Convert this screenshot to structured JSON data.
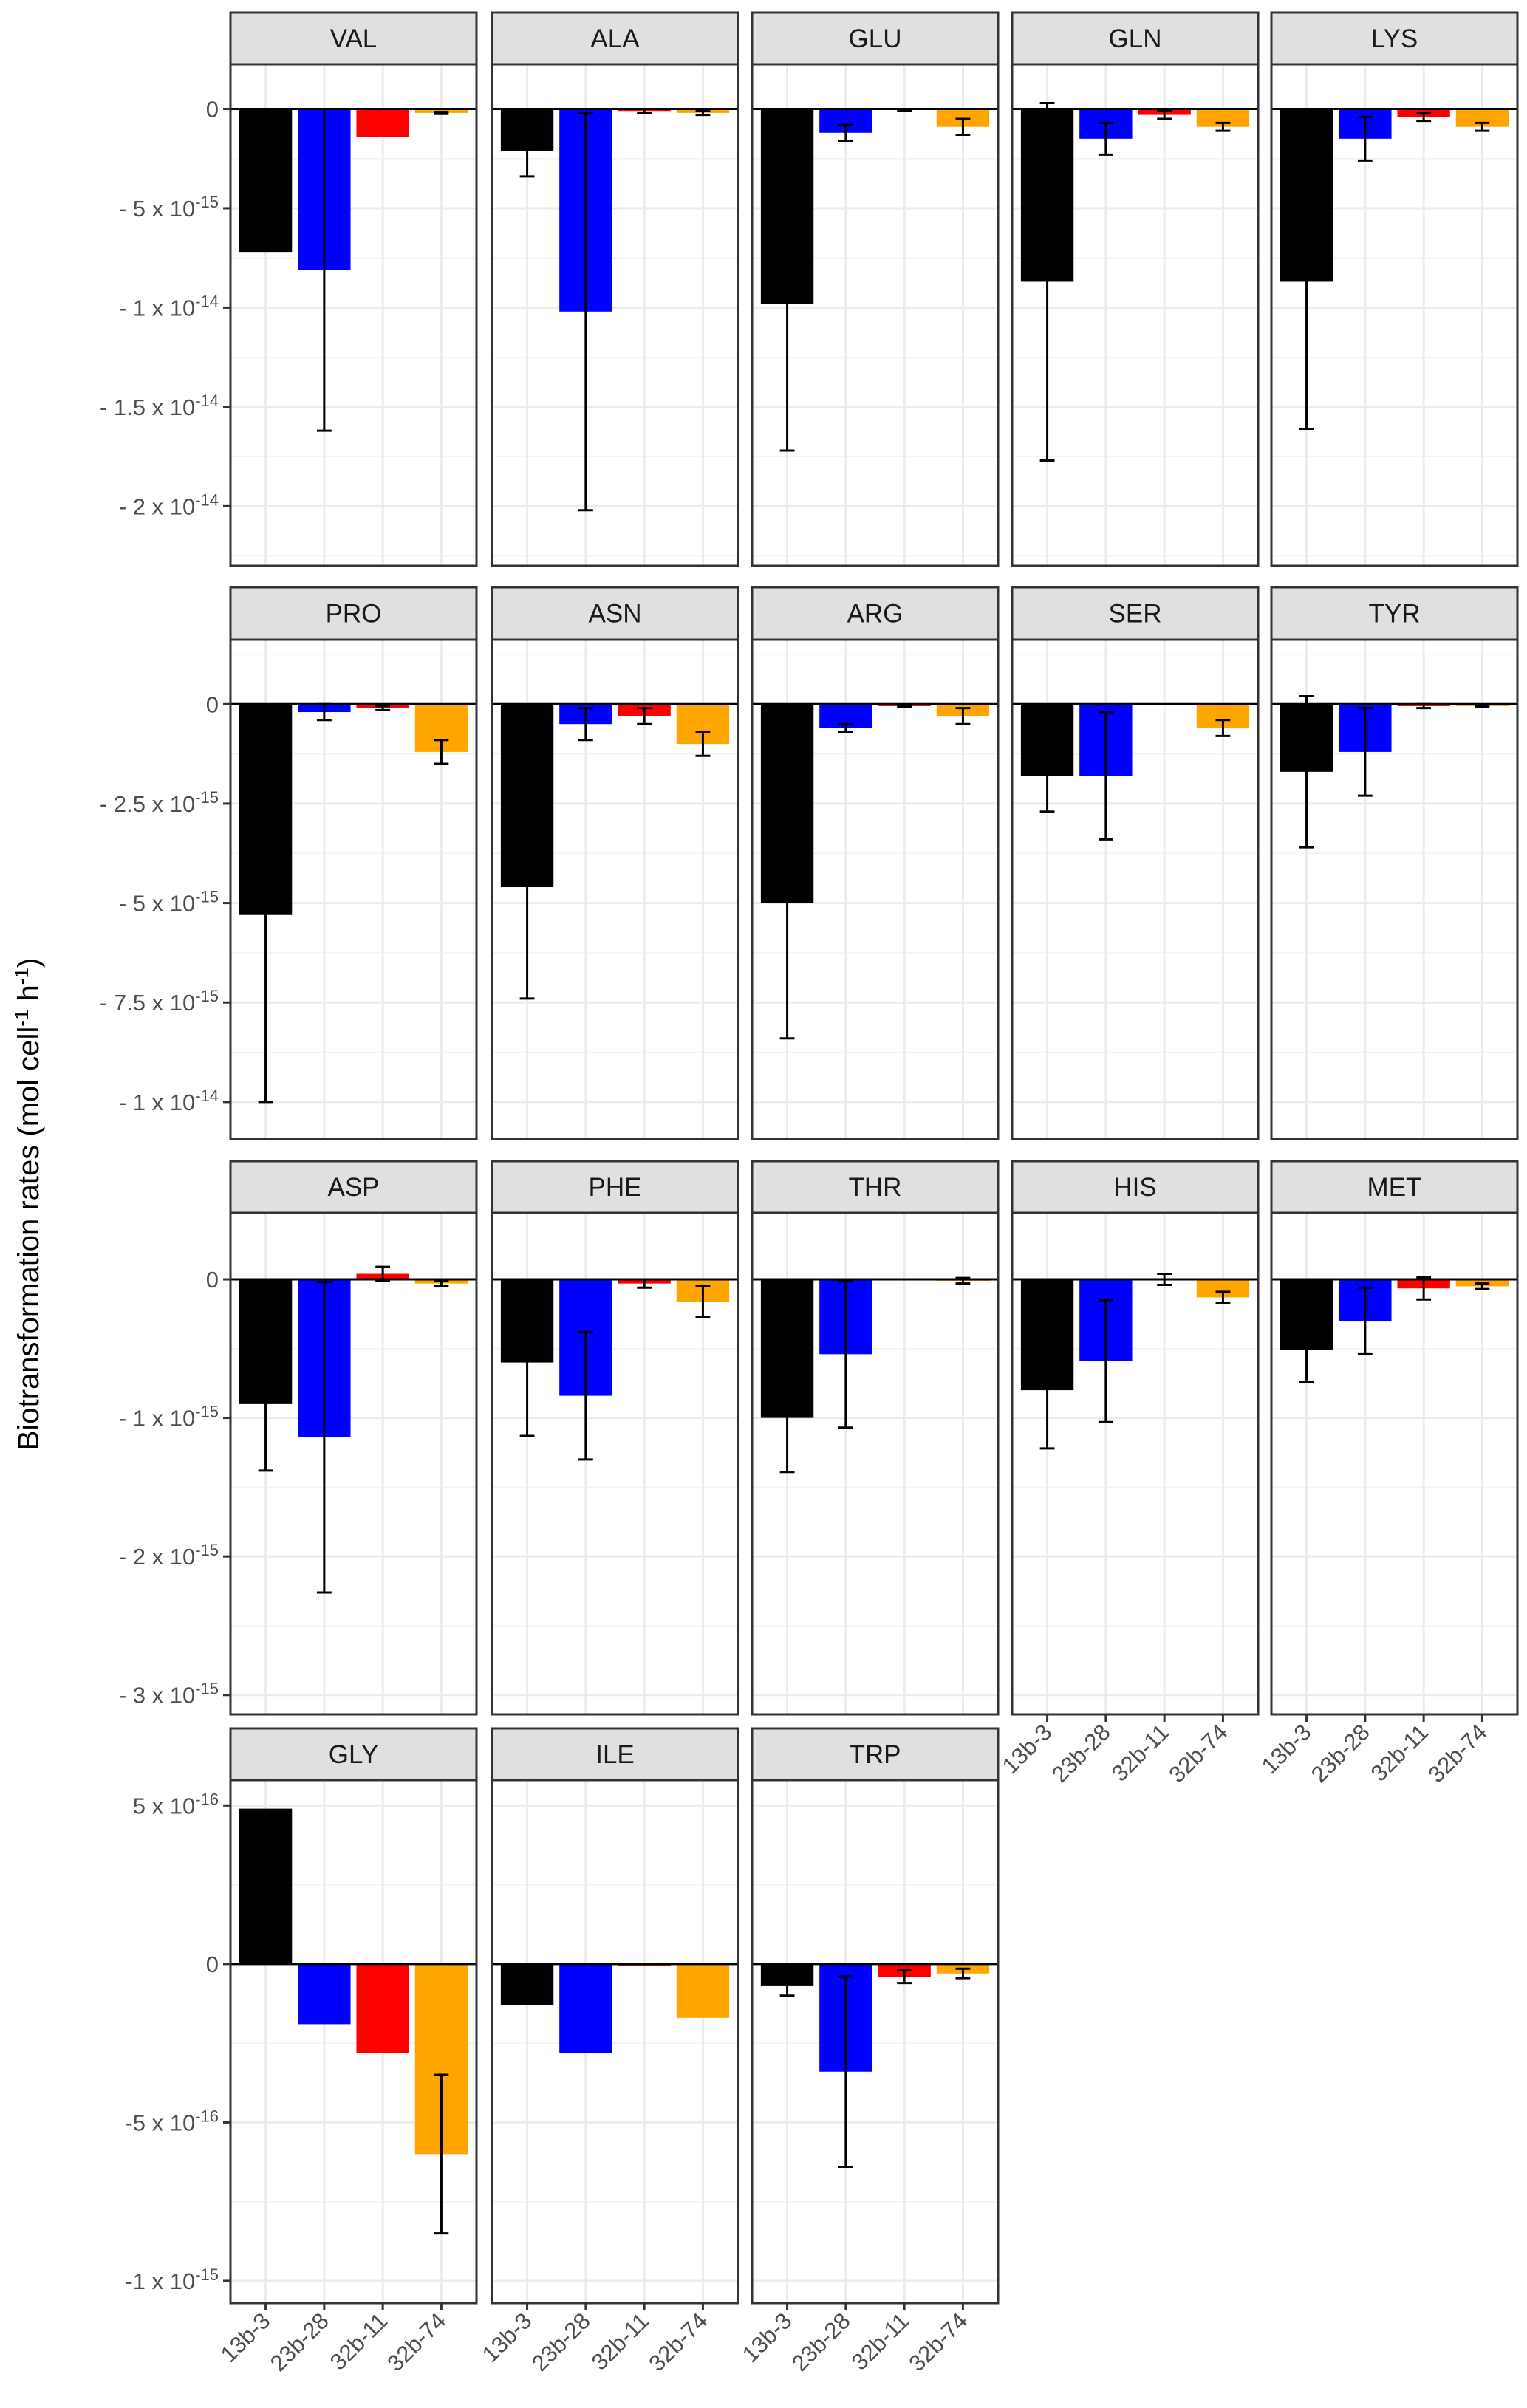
{
  "chart_data": {
    "type": "bar",
    "layout": "faceted-grid",
    "ylabel": {
      "text": "Biotransformation rates (mol cell",
      "sup1": "-1",
      "mid": " h",
      "sup2": "-1",
      "end": ")"
    },
    "categories": [
      "13b-3",
      "23b-28",
      "32b-11",
      "32b-74"
    ],
    "colors": [
      "#000000",
      "#0000ff",
      "#ff0000",
      "#ffa500"
    ],
    "rows": [
      {
        "ylim": [
          -2.3e-14,
          2.25e-15
        ],
        "ticks": [
          {
            "value": 0,
            "text": "0",
            "exp": ""
          },
          {
            "value": -5e-15,
            "text": "- 5 x 10",
            "exp": "-15"
          },
          {
            "value": -1e-14,
            "text": "- 1 x 10",
            "exp": "-14"
          },
          {
            "value": -1.5e-14,
            "text": "- 1.5 x 10",
            "exp": "-14"
          },
          {
            "value": -2e-14,
            "text": "- 2 x 10",
            "exp": "-14"
          }
        ]
      },
      {
        "ylim": [
          -1.093e-14,
          1.62e-15
        ],
        "ticks": [
          {
            "value": 0,
            "text": "0",
            "exp": ""
          },
          {
            "value": -2.5e-15,
            "text": "- 2.5 x 10",
            "exp": "-15"
          },
          {
            "value": -5e-15,
            "text": "- 5 x 10",
            "exp": "-15"
          },
          {
            "value": -7.5e-15,
            "text": "- 7.5 x 10",
            "exp": "-15"
          },
          {
            "value": -1e-14,
            "text": "- 1 x 10",
            "exp": "-14"
          }
        ]
      },
      {
        "ylim": [
          -3.14e-15,
          4.8e-16
        ],
        "ticks": [
          {
            "value": 0,
            "text": "0",
            "exp": ""
          },
          {
            "value": -1e-15,
            "text": "- 1 x 10",
            "exp": "-15"
          },
          {
            "value": -2e-15,
            "text": "- 2 x 10",
            "exp": "-15"
          },
          {
            "value": -3e-15,
            "text": "- 3 x 10",
            "exp": "-15"
          }
        ]
      },
      {
        "ylim": [
          -1.07e-15,
          5.8e-16
        ],
        "ticks": [
          {
            "value": 5e-16,
            "text": "5 x 10",
            "exp": "-16"
          },
          {
            "value": 0,
            "text": "0",
            "exp": ""
          },
          {
            "value": -5e-16,
            "text": "-5 x 10",
            "exp": "-16"
          },
          {
            "value": -1e-15,
            "text": "-1 x 10",
            "exp": "-15"
          }
        ]
      }
    ],
    "panels": [
      {
        "title": "VAL",
        "values": [
          -7.2e-15,
          -8.1e-15,
          -1.4e-15,
          -2e-16
        ],
        "errors": [
          0,
          8.1e-15,
          0,
          5e-17
        ]
      },
      {
        "title": "ALA",
        "values": [
          -2.1e-15,
          -1.02e-14,
          -1e-16,
          -2e-16
        ],
        "errors": [
          1.3e-15,
          1e-14,
          1e-16,
          1e-16
        ]
      },
      {
        "title": "GLU",
        "values": [
          -9.8e-15,
          -1.2e-15,
          -5e-17,
          -9e-16
        ],
        "errors": [
          7.4e-15,
          4e-16,
          5e-17,
          4e-16
        ]
      },
      {
        "title": "GLN",
        "values": [
          -8.7e-15,
          -1.5e-15,
          -3e-16,
          -9e-16
        ],
        "errors": [
          9e-15,
          8e-16,
          2e-16,
          2e-16
        ]
      },
      {
        "title": "LYS",
        "values": [
          -8.7e-15,
          -1.5e-15,
          -4e-16,
          -9e-16
        ],
        "errors": [
          7.4e-15,
          1.1e-15,
          2e-16,
          2e-16
        ]
      },
      {
        "title": "PRO",
        "values": [
          -5.3e-15,
          -2e-16,
          -1e-16,
          -1.2e-15
        ],
        "errors": [
          4.7e-15,
          2e-16,
          5e-17,
          3e-16
        ]
      },
      {
        "title": "ASN",
        "values": [
          -4.6e-15,
          -5e-16,
          -3e-16,
          -1e-15
        ],
        "errors": [
          2.8e-15,
          4e-16,
          2e-16,
          3e-16
        ]
      },
      {
        "title": "ARG",
        "values": [
          -5e-15,
          -6e-16,
          -5e-17,
          -3e-16
        ],
        "errors": [
          3.4e-15,
          1e-16,
          2e-17,
          2e-16
        ]
      },
      {
        "title": "SER",
        "values": [
          -1.8e-15,
          -1.8e-15,
          0,
          -6e-16
        ],
        "errors": [
          9e-16,
          1.6e-15,
          0,
          2e-16
        ]
      },
      {
        "title": "TYR",
        "values": [
          -1.7e-15,
          -1.2e-15,
          -5e-17,
          -5e-17
        ],
        "errors": [
          1.9e-15,
          1.1e-15,
          5e-17,
          2e-17
        ]
      },
      {
        "title": "ASP",
        "values": [
          -9e-16,
          -1.14e-15,
          4e-17,
          -3e-17
        ],
        "errors": [
          4.8e-16,
          1.12e-15,
          5e-17,
          2e-17
        ]
      },
      {
        "title": "PHE",
        "values": [
          -6e-16,
          -8.4e-16,
          -3e-17,
          -1.6e-16
        ],
        "errors": [
          5.3e-16,
          4.6e-16,
          3e-17,
          1.1e-16
        ]
      },
      {
        "title": "THR",
        "values": [
          -1e-15,
          -5.4e-16,
          0,
          -1e-17
        ],
        "errors": [
          3.9e-16,
          5.3e-16,
          0,
          2e-17
        ]
      },
      {
        "title": "HIS",
        "values": [
          -8e-16,
          -5.9e-16,
          0,
          -1.3e-16
        ],
        "errors": [
          4.2e-16,
          4.4e-16,
          4e-17,
          4e-17
        ]
      },
      {
        "title": "MET",
        "values": [
          -5.1e-16,
          -3e-16,
          -6.5e-17,
          -5e-17
        ],
        "errors": [
          2.3e-16,
          2.4e-16,
          8e-17,
          2e-17
        ]
      },
      {
        "title": "GLY",
        "values": [
          4.9e-16,
          -1.9e-16,
          -2.8e-16,
          -6e-16
        ],
        "errors": [
          0,
          0,
          0,
          2.5e-16
        ]
      },
      {
        "title": "ILE",
        "values": [
          -1.3e-16,
          -2.8e-16,
          -5e-18,
          -1.7e-16
        ],
        "errors": [
          0,
          0,
          0,
          0
        ]
      },
      {
        "title": "TRP",
        "values": [
          -7e-17,
          -3.4e-16,
          -4e-17,
          -3e-17
        ],
        "errors": [
          3e-17,
          3e-16,
          2e-17,
          1.5e-17
        ]
      }
    ]
  }
}
